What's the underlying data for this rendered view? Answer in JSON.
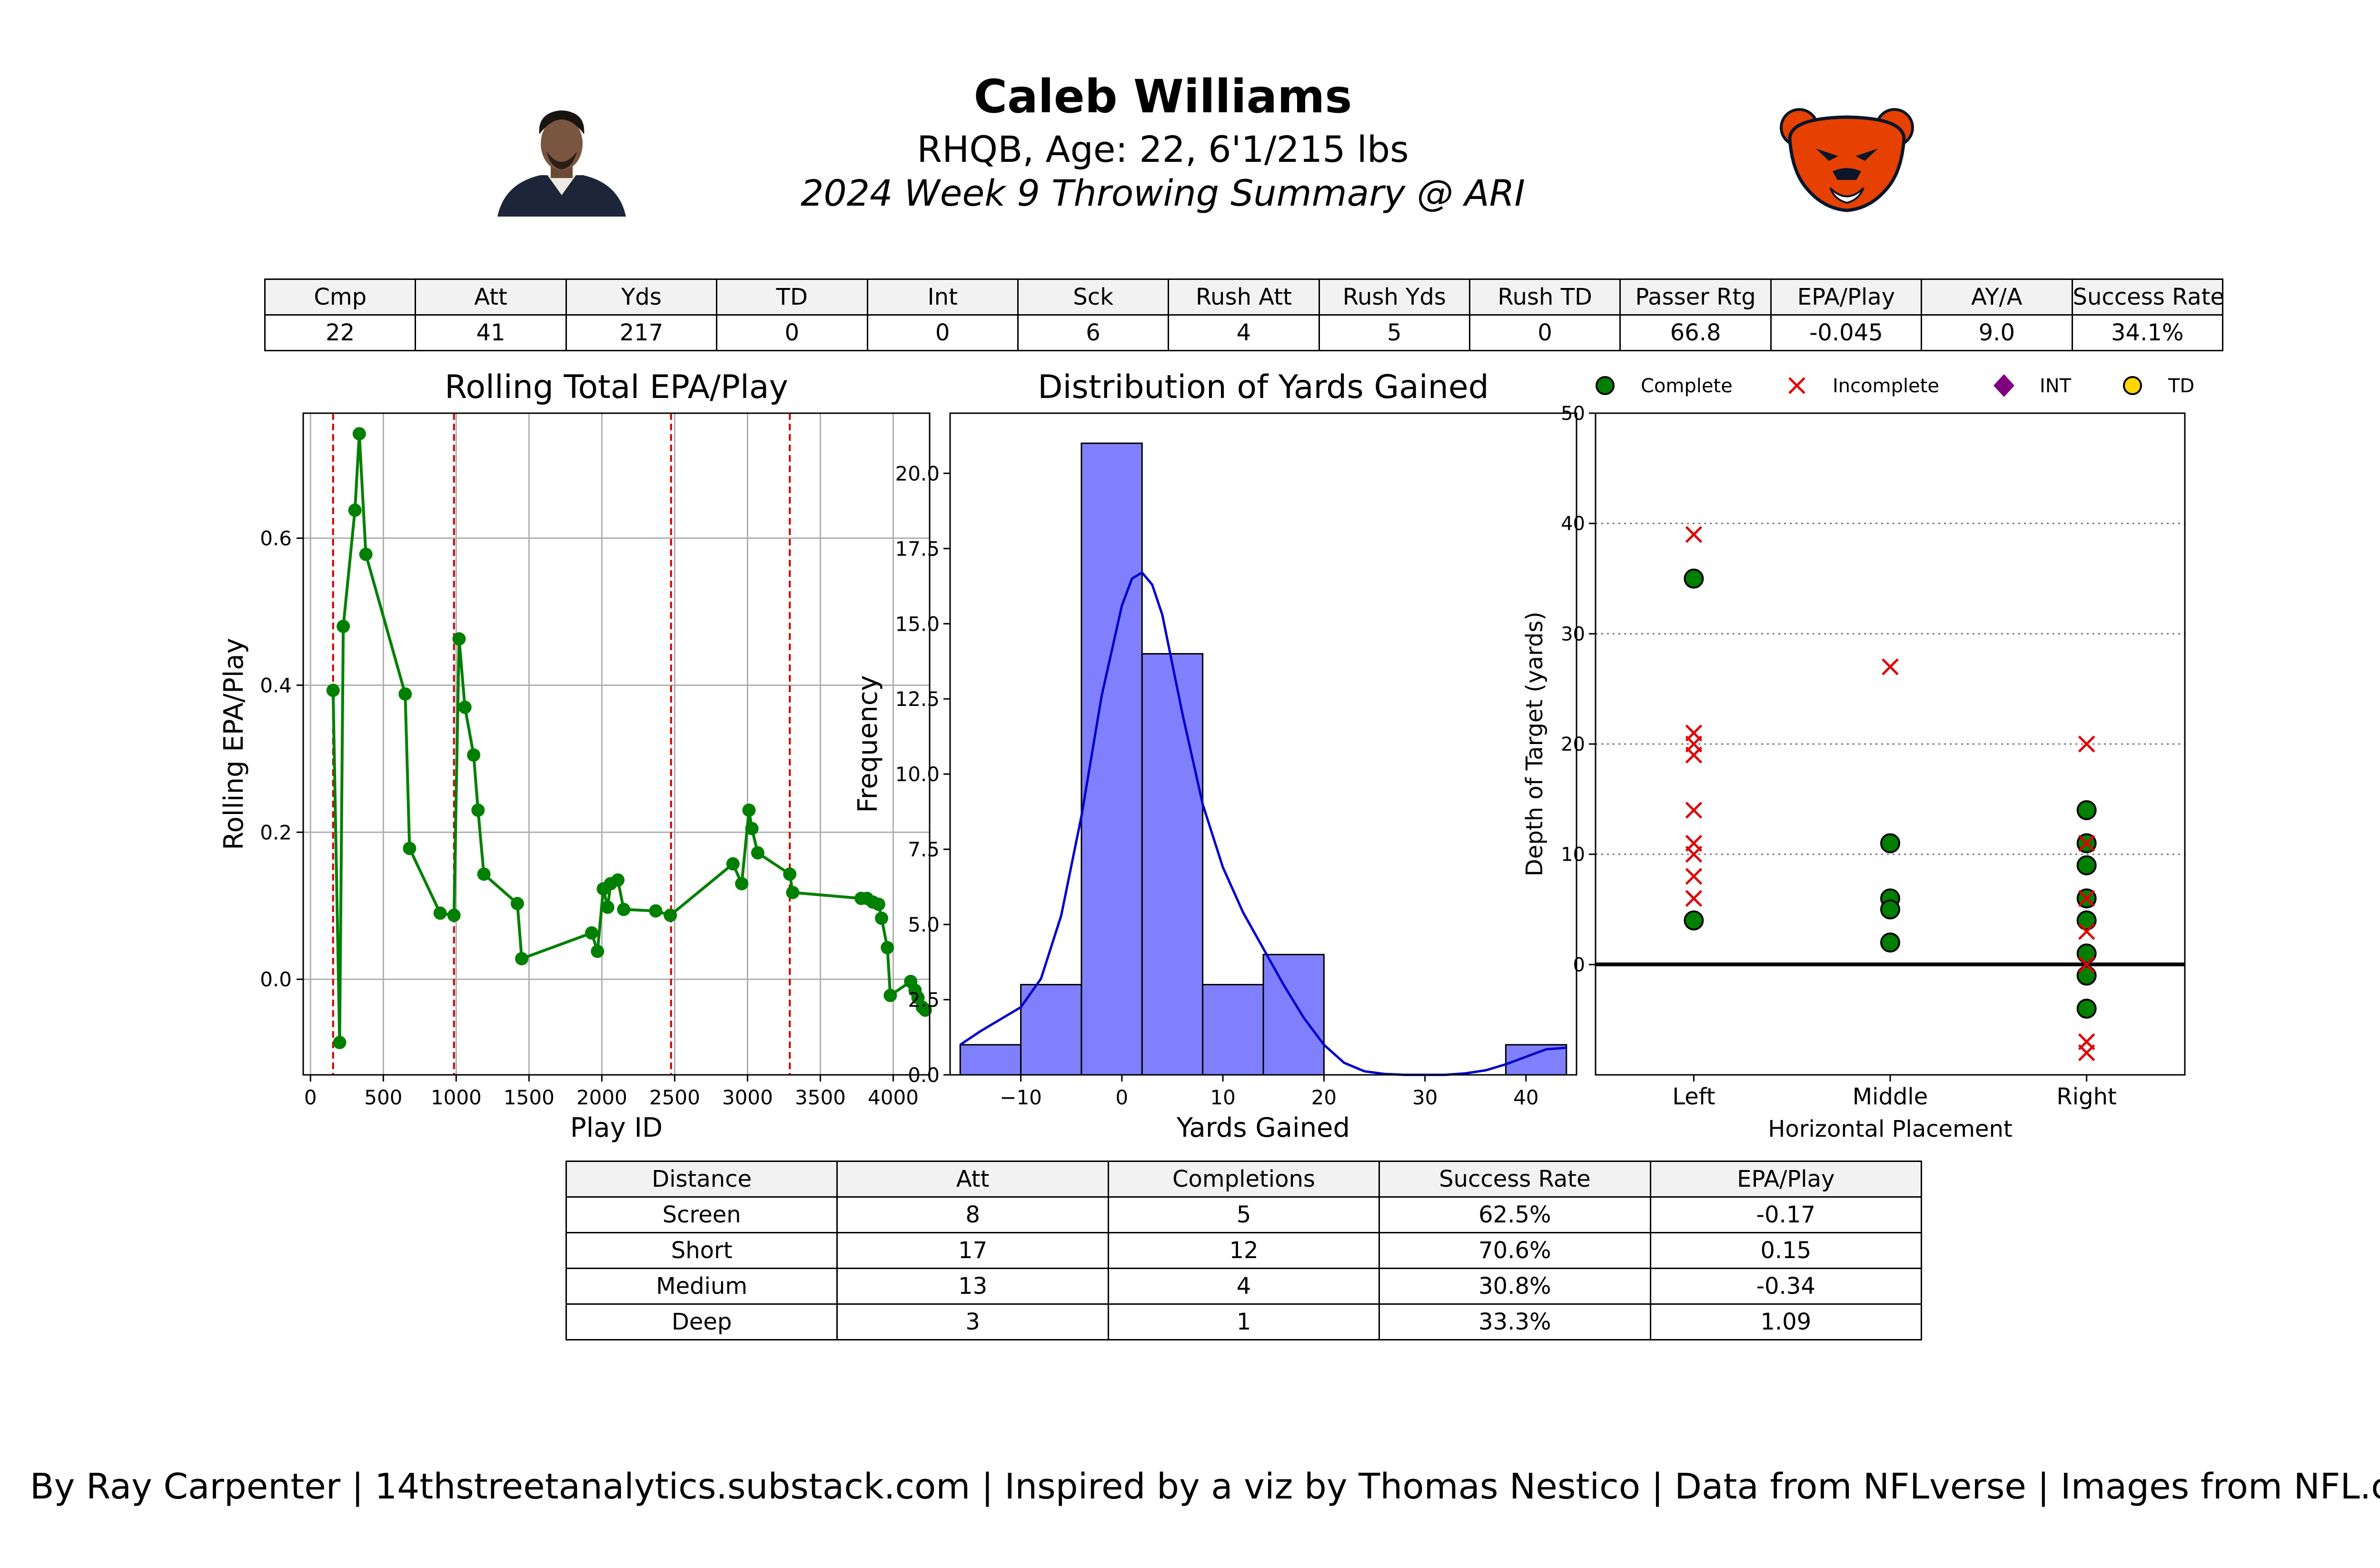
{
  "header": {
    "player_name": "Caleb Williams",
    "bio": "RHQB, Age: 22, 6'1/215 lbs",
    "subtitle": "2024 Week 9 Throwing Summary @ ARI",
    "headshot_icon": "player-headshot-icon",
    "team_logo_icon": "bears-logo-icon",
    "team_color": "#e64100"
  },
  "summary_table": {
    "columns": [
      "Cmp",
      "Att",
      "Yds",
      "TD",
      "Int",
      "Sck",
      "Rush Att",
      "Rush Yds",
      "Rush TD",
      "Passer Rtg",
      "EPA/Play",
      "AY/A",
      "Success Rate"
    ],
    "values": [
      "22",
      "41",
      "217",
      "0",
      "0",
      "6",
      "4",
      "5",
      "0",
      "66.8",
      "-0.045",
      "9.0",
      "34.1%"
    ]
  },
  "chart_data": [
    {
      "type": "line",
      "title": "Rolling Total EPA/Play",
      "xlabel": "Play ID",
      "ylabel": "Rolling EPA/Play",
      "xlim": [
        -50,
        4250
      ],
      "ylim": [
        -0.13,
        0.77
      ],
      "x_ticks": [
        0,
        500,
        1000,
        1500,
        2000,
        2500,
        3000,
        3500,
        4000
      ],
      "y_ticks": [
        0.0,
        0.2,
        0.4,
        0.6
      ],
      "grid": true,
      "color": "#008000",
      "quarter_lines": [
        155,
        985,
        2475,
        3290
      ],
      "quarter_line_color": "#cc0000",
      "points": [
        [
          155,
          0.393
        ],
        [
          200,
          -0.086
        ],
        [
          225,
          0.48
        ],
        [
          305,
          0.638
        ],
        [
          335,
          0.742
        ],
        [
          380,
          0.578
        ],
        [
          650,
          0.388
        ],
        [
          680,
          0.178
        ],
        [
          890,
          0.09
        ],
        [
          985,
          0.087
        ],
        [
          1020,
          0.463
        ],
        [
          1060,
          0.37
        ],
        [
          1120,
          0.305
        ],
        [
          1150,
          0.23
        ],
        [
          1190,
          0.143
        ],
        [
          1420,
          0.103
        ],
        [
          1450,
          0.028
        ],
        [
          1930,
          0.063
        ],
        [
          1970,
          0.038
        ],
        [
          2010,
          0.123
        ],
        [
          2040,
          0.098
        ],
        [
          2060,
          0.13
        ],
        [
          2110,
          0.135
        ],
        [
          2150,
          0.095
        ],
        [
          2370,
          0.093
        ],
        [
          2470,
          0.087
        ],
        [
          2900,
          0.157
        ],
        [
          2960,
          0.13
        ],
        [
          3010,
          0.23
        ],
        [
          3030,
          0.205
        ],
        [
          3070,
          0.172
        ],
        [
          3290,
          0.143
        ],
        [
          3310,
          0.118
        ],
        [
          3780,
          0.11
        ],
        [
          3820,
          0.11
        ],
        [
          3860,
          0.105
        ],
        [
          3900,
          0.102
        ],
        [
          3920,
          0.083
        ],
        [
          3960,
          0.043
        ],
        [
          3980,
          -0.022
        ],
        [
          4120,
          -0.003
        ],
        [
          4150,
          -0.015
        ],
        [
          4170,
          -0.025
        ],
        [
          4200,
          -0.038
        ],
        [
          4220,
          -0.042
        ]
      ]
    },
    {
      "type": "histogram",
      "title": "Distribution of Yards Gained",
      "xlabel": "Yards Gained",
      "ylabel": "Frequency",
      "xlim": [
        -17,
        45
      ],
      "ylim": [
        0,
        22
      ],
      "x_ticks": [
        -10,
        0,
        10,
        20,
        30,
        40
      ],
      "y_ticks": [
        0.0,
        2.5,
        5.0,
        7.5,
        10.0,
        12.5,
        15.0,
        17.5,
        20.0
      ],
      "bar_color": "#8080ff",
      "kde_color": "#0000cc",
      "bins": [
        {
          "x0": -16,
          "x1": -10,
          "count": 1
        },
        {
          "x0": -10,
          "x1": -4,
          "count": 3
        },
        {
          "x0": -4,
          "x1": 2,
          "count": 21
        },
        {
          "x0": 2,
          "x1": 8,
          "count": 14
        },
        {
          "x0": 8,
          "x1": 14,
          "count": 3
        },
        {
          "x0": 14,
          "x1": 20,
          "count": 4
        },
        {
          "x0": 20,
          "x1": 26,
          "count": 0
        },
        {
          "x0": 26,
          "x1": 32,
          "count": 0
        },
        {
          "x0": 32,
          "x1": 38,
          "count": 0
        },
        {
          "x0": 38,
          "x1": 44,
          "count": 1
        }
      ],
      "kde": [
        [
          -16,
          1.0
        ],
        [
          -14,
          1.45
        ],
        [
          -12,
          1.85
        ],
        [
          -10,
          2.25
        ],
        [
          -8,
          3.2
        ],
        [
          -6,
          5.3
        ],
        [
          -4,
          8.6
        ],
        [
          -2,
          12.6
        ],
        [
          0,
          15.6
        ],
        [
          1,
          16.5
        ],
        [
          2,
          16.7
        ],
        [
          3,
          16.3
        ],
        [
          4,
          15.3
        ],
        [
          6,
          12.0
        ],
        [
          8,
          9.0
        ],
        [
          10,
          6.9
        ],
        [
          12,
          5.4
        ],
        [
          14,
          4.2
        ],
        [
          16,
          3.0
        ],
        [
          18,
          1.9
        ],
        [
          20,
          1.0
        ],
        [
          22,
          0.4
        ],
        [
          24,
          0.12
        ],
        [
          26,
          0.03
        ],
        [
          28,
          0.0
        ],
        [
          30,
          0.0
        ],
        [
          32,
          0.0
        ],
        [
          34,
          0.05
        ],
        [
          36,
          0.15
        ],
        [
          38,
          0.35
        ],
        [
          40,
          0.6
        ],
        [
          42,
          0.85
        ],
        [
          44,
          0.9
        ]
      ]
    },
    {
      "type": "scatter",
      "xlabel": "Horizontal Placement",
      "ylabel": "Depth of Target (yards)",
      "categories": [
        "Left",
        "Middle",
        "Right"
      ],
      "ylim": [
        -10,
        50
      ],
      "y_ticks": [
        0,
        10,
        20,
        30,
        40,
        50
      ],
      "grid": "y-dotted",
      "legend": [
        {
          "label": "Complete",
          "marker": "circle",
          "color": "#008000"
        },
        {
          "label": "Incomplete",
          "marker": "x",
          "color": "#e00000"
        },
        {
          "label": "INT",
          "marker": "diamond",
          "color": "#800080"
        },
        {
          "label": "TD",
          "marker": "circle",
          "color": "#ffd700"
        }
      ],
      "complete": [
        [
          "Left",
          35
        ],
        [
          "Left",
          4
        ],
        [
          "Middle",
          11
        ],
        [
          "Middle",
          6
        ],
        [
          "Middle",
          5
        ],
        [
          "Middle",
          2
        ],
        [
          "Right",
          14
        ],
        [
          "Right",
          11
        ],
        [
          "Right",
          9
        ],
        [
          "Right",
          6
        ],
        [
          "Right",
          4
        ],
        [
          "Right",
          1
        ],
        [
          "Right",
          -1
        ],
        [
          "Right",
          -4
        ]
      ],
      "incomplete": [
        [
          "Left",
          39
        ],
        [
          "Left",
          21
        ],
        [
          "Left",
          20
        ],
        [
          "Left",
          19
        ],
        [
          "Left",
          14
        ],
        [
          "Left",
          11
        ],
        [
          "Left",
          10
        ],
        [
          "Left",
          8
        ],
        [
          "Left",
          6
        ],
        [
          "Middle",
          27
        ],
        [
          "Right",
          20
        ],
        [
          "Right",
          11
        ],
        [
          "Right",
          6
        ],
        [
          "Right",
          3
        ],
        [
          "Right",
          0
        ],
        [
          "Right",
          -7
        ],
        [
          "Right",
          -8
        ]
      ]
    }
  ],
  "depth_table": {
    "columns": [
      "Distance",
      "Att",
      "Completions",
      "Success Rate",
      "EPA/Play"
    ],
    "rows": [
      [
        "Screen",
        "8",
        "5",
        "62.5%",
        "-0.17"
      ],
      [
        "Short",
        "17",
        "12",
        "70.6%",
        "0.15"
      ],
      [
        "Medium",
        "13",
        "4",
        "30.8%",
        "-0.34"
      ],
      [
        "Deep",
        "3",
        "1",
        "33.3%",
        "1.09"
      ]
    ]
  },
  "footer": "By Ray Carpenter | 14thstreetanalytics.substack.com | Inspired by a viz by Thomas Nestico | Data from NFLverse | Images from NFL.com"
}
